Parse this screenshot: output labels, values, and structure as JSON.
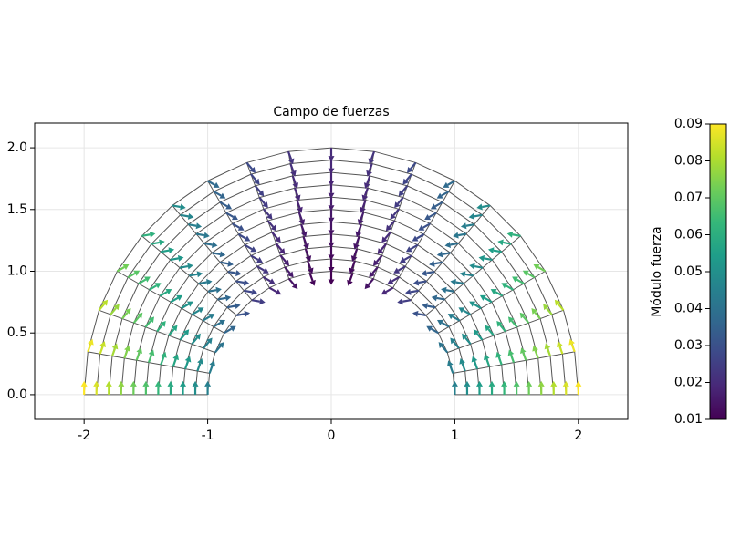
{
  "chart_data": {
    "type": "quiver",
    "title": "Campo de fuerzas",
    "colorbar_label": "Módulo fuerza",
    "xlim": [
      -2.4,
      2.4
    ],
    "ylim": [
      -0.2,
      2.2
    ],
    "xticks": [
      -2,
      -1,
      0,
      1,
      2
    ],
    "yticks": [
      {
        "value": 0,
        "label": "0.0"
      },
      0.5,
      {
        "value": 1,
        "label": "1.0"
      },
      1.5,
      {
        "value": 2,
        "label": "2.0"
      }
    ],
    "grid": true,
    "clim": [
      0.01,
      0.09
    ],
    "cticks": [
      0.01,
      0.02,
      0.03,
      0.04,
      0.05,
      0.06,
      0.07,
      0.08,
      0.09
    ],
    "colormap": "viridis",
    "mesh_color": "#555555",
    "radii": [
      1.0,
      1.1,
      1.2,
      1.3,
      1.4,
      1.5,
      1.6,
      1.7,
      1.8,
      1.9,
      2.0
    ],
    "angles": [
      0,
      10,
      20,
      30,
      40,
      50,
      60,
      70,
      80,
      90,
      100,
      110,
      120,
      130,
      140,
      150,
      160,
      170,
      180
    ],
    "directions": [
      90,
      110,
      130,
      150,
      170,
      190,
      210,
      230,
      250,
      270,
      290,
      310,
      330,
      350,
      370,
      390,
      410,
      430,
      450
    ],
    "magnitude": [
      [
        0.045,
        0.044,
        0.0409,
        0.0363,
        0.0305,
        0.0245,
        0.0188,
        0.0141,
        0.0111,
        0.01,
        0.0111,
        0.0141,
        0.0188,
        0.0245,
        0.0305,
        0.0363,
        0.0409,
        0.044,
        0.045
      ],
      [
        0.0495,
        0.0484,
        0.045,
        0.0399,
        0.0336,
        0.027,
        0.0207,
        0.0155,
        0.0122,
        0.011,
        0.0122,
        0.0155,
        0.0207,
        0.027,
        0.0336,
        0.0399,
        0.045,
        0.0484,
        0.0495
      ],
      [
        0.054,
        0.0528,
        0.0491,
        0.0436,
        0.0366,
        0.0294,
        0.0226,
        0.0169,
        0.0133,
        0.012,
        0.0133,
        0.0169,
        0.0226,
        0.0294,
        0.0366,
        0.0436,
        0.0491,
        0.0528,
        0.054
      ],
      [
        0.0585,
        0.0572,
        0.0532,
        0.0472,
        0.0397,
        0.0319,
        0.0244,
        0.0183,
        0.0144,
        0.013,
        0.0144,
        0.0183,
        0.0244,
        0.0319,
        0.0397,
        0.0472,
        0.0532,
        0.0572,
        0.0585
      ],
      [
        0.063,
        0.0616,
        0.0573,
        0.0508,
        0.0427,
        0.0343,
        0.0263,
        0.0197,
        0.0155,
        0.014,
        0.0155,
        0.0197,
        0.0263,
        0.0343,
        0.0427,
        0.0508,
        0.0573,
        0.0616,
        0.063
      ],
      [
        0.0675,
        0.066,
        0.0614,
        0.0545,
        0.0458,
        0.0368,
        0.0282,
        0.0212,
        0.0167,
        0.015,
        0.0167,
        0.0212,
        0.0282,
        0.0368,
        0.0458,
        0.0545,
        0.0614,
        0.066,
        0.0675
      ],
      [
        0.072,
        0.0704,
        0.0654,
        0.0581,
        0.0488,
        0.0392,
        0.0301,
        0.0226,
        0.0178,
        0.016,
        0.0178,
        0.0226,
        0.0301,
        0.0392,
        0.0488,
        0.0581,
        0.0654,
        0.0704,
        0.072
      ],
      [
        0.0765,
        0.0748,
        0.0695,
        0.0617,
        0.0519,
        0.0417,
        0.032,
        0.024,
        0.0189,
        0.017,
        0.0189,
        0.024,
        0.032,
        0.0417,
        0.0519,
        0.0617,
        0.0695,
        0.0748,
        0.0765
      ],
      [
        0.081,
        0.0792,
        0.0736,
        0.0653,
        0.0549,
        0.0441,
        0.0338,
        0.0254,
        0.02,
        0.018,
        0.02,
        0.0254,
        0.0338,
        0.0441,
        0.0549,
        0.0653,
        0.0736,
        0.0792,
        0.081
      ],
      [
        0.0855,
        0.0836,
        0.0777,
        0.069,
        0.058,
        0.0466,
        0.0357,
        0.0268,
        0.0211,
        0.019,
        0.0211,
        0.0268,
        0.0357,
        0.0466,
        0.058,
        0.069,
        0.0777,
        0.0836,
        0.0855
      ],
      [
        0.09,
        0.088,
        0.0818,
        0.0726,
        0.061,
        0.049,
        0.0376,
        0.0282,
        0.0222,
        0.02,
        0.0222,
        0.0282,
        0.0376,
        0.049,
        0.061,
        0.0726,
        0.0818,
        0.088,
        0.09
      ]
    ]
  }
}
